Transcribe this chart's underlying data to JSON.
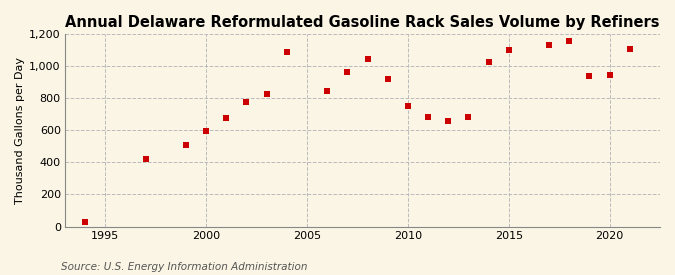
{
  "title": "Annual Delaware Reformulated Gasoline Rack Sales Volume by Refiners",
  "ylabel": "Thousand Gallons per Day",
  "source": "Source: U.S. Energy Information Administration",
  "background_color": "#faf5e4",
  "plot_background_color": "#faf5e4",
  "marker_color": "#cc0000",
  "grid_color": "#bbbbbb",
  "years": [
    1994,
    1997,
    1999,
    2000,
    2001,
    2002,
    2003,
    2004,
    2006,
    2007,
    2008,
    2009,
    2010,
    2011,
    2012,
    2013,
    2014,
    2015,
    2017,
    2018,
    2019,
    2020,
    2021
  ],
  "values": [
    28,
    420,
    510,
    595,
    675,
    775,
    825,
    1085,
    845,
    965,
    1045,
    920,
    750,
    685,
    660,
    685,
    1025,
    1100,
    1130,
    1155,
    940,
    945,
    1105
  ],
  "ylim": [
    0,
    1200
  ],
  "yticks": [
    0,
    200,
    400,
    600,
    800,
    1000,
    1200
  ],
  "ytick_labels": [
    "0",
    "200",
    "400",
    "600",
    "800",
    "1,000",
    "1,200"
  ],
  "xlim": [
    1993.0,
    2022.5
  ],
  "xticks": [
    1995,
    2000,
    2005,
    2010,
    2015,
    2020
  ],
  "title_fontsize": 10.5,
  "tick_fontsize": 8,
  "ylabel_fontsize": 8,
  "source_fontsize": 7.5
}
